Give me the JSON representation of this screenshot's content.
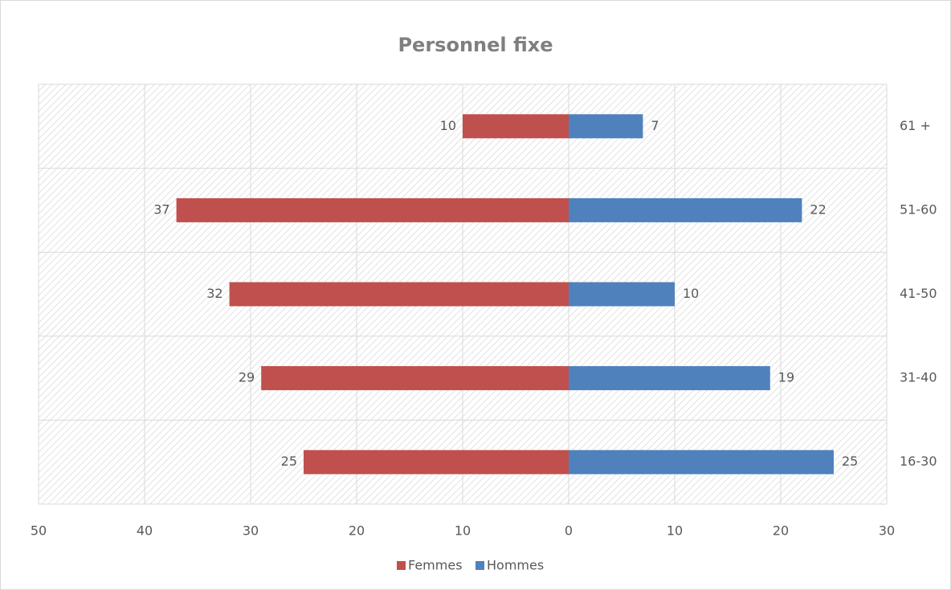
{
  "chart_data": {
    "type": "pyramid",
    "title": "Personnel fixe",
    "categories": [
      "16-30",
      "31-40",
      "41-50",
      "51-60",
      "61 +"
    ],
    "series": [
      {
        "name": "Femmes",
        "color": "#c0504d",
        "values": [
          -25,
          -29,
          -32,
          -37,
          -10
        ],
        "value_labels": [
          "25",
          "29",
          "32",
          "37",
          "10"
        ]
      },
      {
        "name": "Hommes",
        "color": "#4f81bd",
        "values": [
          25,
          19,
          10,
          22,
          7
        ]
      }
    ],
    "xlim": [
      -50,
      30
    ],
    "xticks": [
      {
        "value": -50,
        "label": "50"
      },
      {
        "value": -40,
        "label": "40"
      },
      {
        "value": -30,
        "label": "30"
      },
      {
        "value": -20,
        "label": "20"
      },
      {
        "value": -10,
        "label": "10"
      },
      0,
      10,
      20,
      30
    ],
    "grid": true,
    "legend": "bottom"
  }
}
